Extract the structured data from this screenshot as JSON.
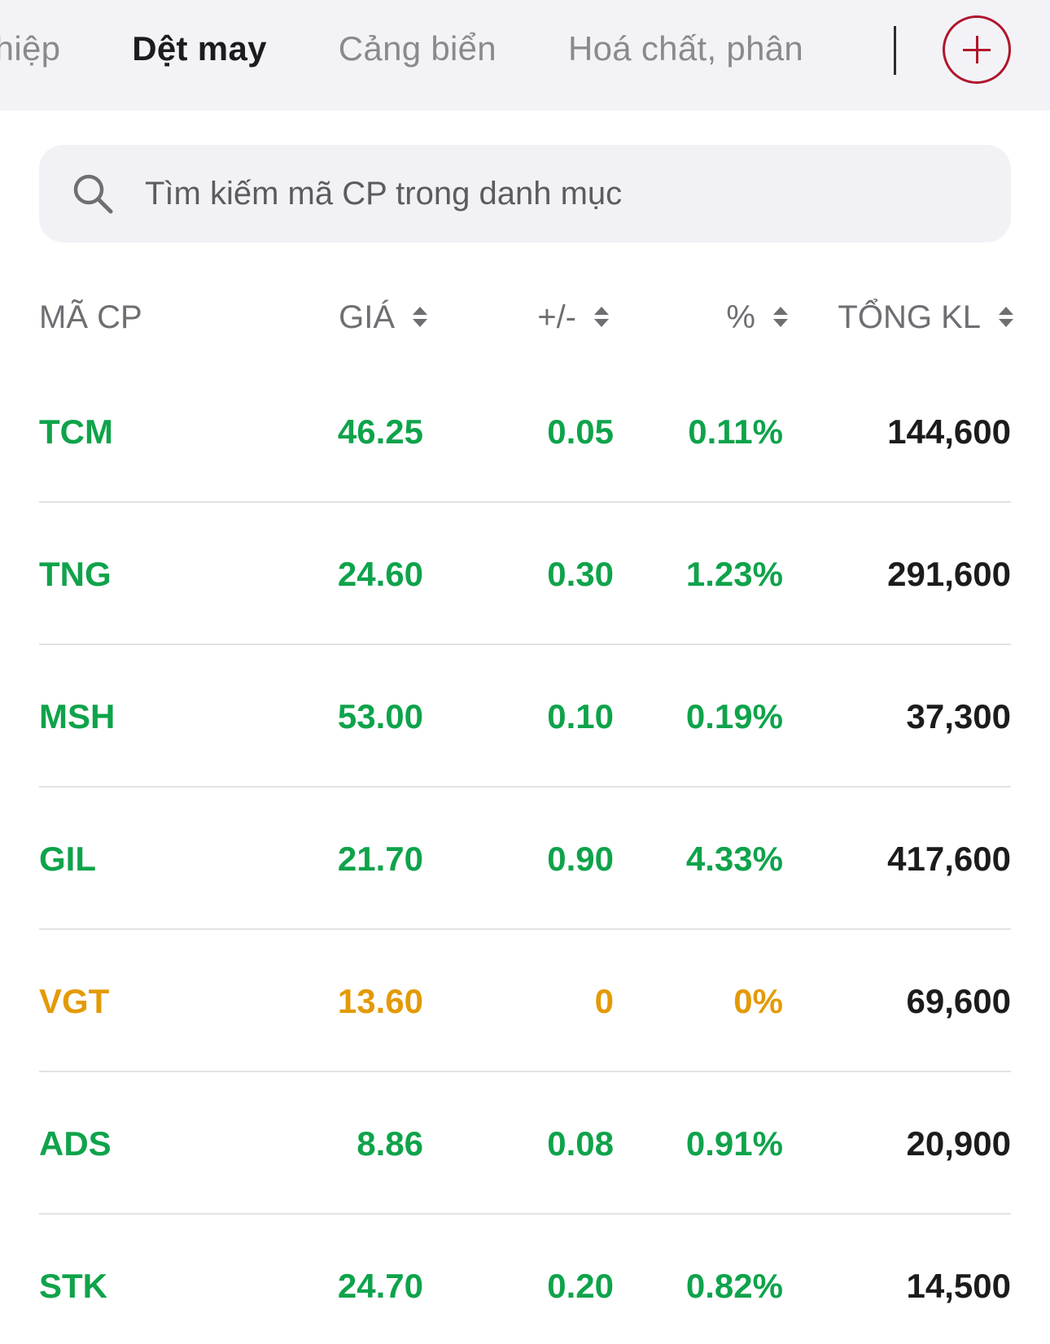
{
  "tabs": [
    {
      "label": "ghiệp",
      "active": false
    },
    {
      "label": "Dệt may",
      "active": true
    },
    {
      "label": "Cảng biển",
      "active": false
    },
    {
      "label": "Hoá chất, phân",
      "active": false
    }
  ],
  "add_button_icon": "plus-circle-icon",
  "search": {
    "icon": "search-icon",
    "placeholder": "Tìm kiếm mã CP trong danh mục",
    "value": ""
  },
  "columns": {
    "code": "MÃ CP",
    "price": "GIÁ",
    "change": "+/-",
    "percent": "%",
    "volume": "TỔNG KL"
  },
  "colors": {
    "up": "#0fa34b",
    "reference": "#e39a05",
    "accent": "#b0162c"
  },
  "rows": [
    {
      "code": "TCM",
      "price": "46.25",
      "change": "0.05",
      "percent": "0.11%",
      "volume": "144,600",
      "status": "up"
    },
    {
      "code": "TNG",
      "price": "24.60",
      "change": "0.30",
      "percent": "1.23%",
      "volume": "291,600",
      "status": "up"
    },
    {
      "code": "MSH",
      "price": "53.00",
      "change": "0.10",
      "percent": "0.19%",
      "volume": "37,300",
      "status": "up"
    },
    {
      "code": "GIL",
      "price": "21.70",
      "change": "0.90",
      "percent": "4.33%",
      "volume": "417,600",
      "status": "up"
    },
    {
      "code": "VGT",
      "price": "13.60",
      "change": "0",
      "percent": "0%",
      "volume": "69,600",
      "status": "reference"
    },
    {
      "code": "ADS",
      "price": "8.86",
      "change": "0.08",
      "percent": "0.91%",
      "volume": "20,900",
      "status": "up"
    },
    {
      "code": "STK",
      "price": "24.70",
      "change": "0.20",
      "percent": "0.82%",
      "volume": "14,500",
      "status": "up"
    }
  ]
}
